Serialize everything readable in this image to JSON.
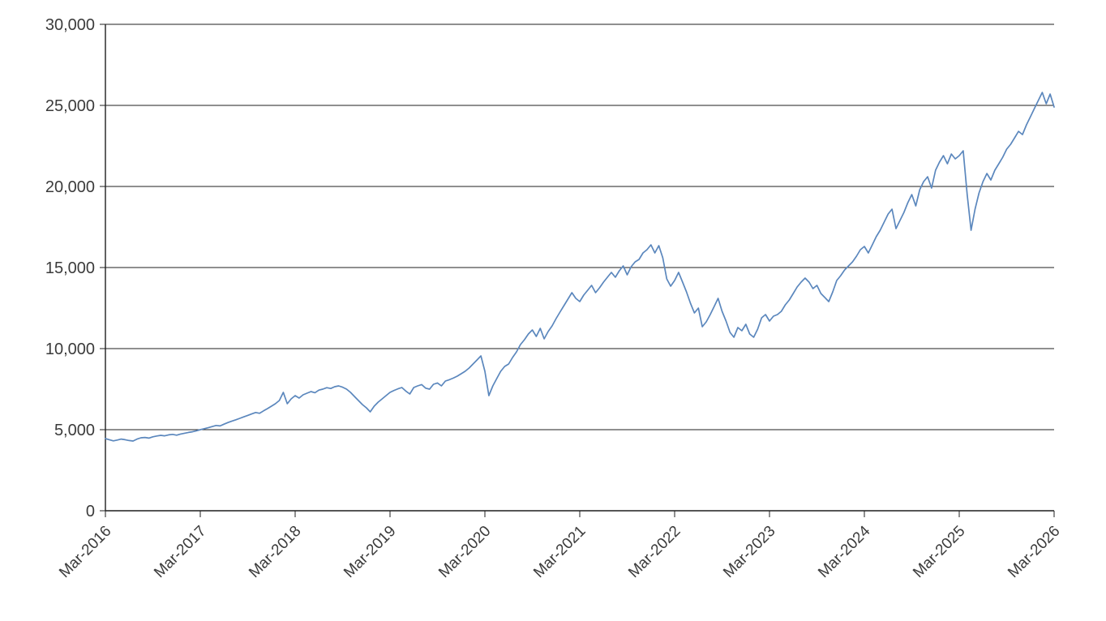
{
  "chart_data": {
    "type": "line",
    "title": "",
    "xlabel": "",
    "ylabel": "",
    "legend": "none",
    "grid": "horizontal",
    "ylim": [
      0,
      30000
    ],
    "y_tick_values": [
      0,
      5000,
      10000,
      15000,
      20000,
      25000,
      30000
    ],
    "y_tick_labels": [
      "0",
      "5,000",
      "10,000",
      "15,000",
      "20,000",
      "25,000",
      "30,000"
    ],
    "x_tick_labels": [
      "Mar-2016",
      "Mar-2017",
      "Mar-2018",
      "Mar-2019",
      "Mar-2020",
      "Mar-2021",
      "Mar-2022",
      "Mar-2023",
      "Mar-2024",
      "Mar-2025",
      "Mar-2026"
    ],
    "sampling": "semi-monthly points from Mar-2016 to Mar-2026, evenly spaced",
    "line_color": "#5b87bd",
    "axis_color": "#1f1f1f",
    "label_color": "#3b3b3b",
    "values": [
      4450,
      4380,
      4310,
      4360,
      4420,
      4380,
      4330,
      4300,
      4420,
      4500,
      4520,
      4480,
      4560,
      4610,
      4650,
      4620,
      4680,
      4710,
      4660,
      4730,
      4780,
      4830,
      4870,
      4930,
      5000,
      5060,
      5120,
      5190,
      5260,
      5230,
      5340,
      5440,
      5530,
      5610,
      5700,
      5790,
      5880,
      5970,
      6060,
      6010,
      6160,
      6300,
      6450,
      6600,
      6800,
      7300,
      6600,
      6900,
      7100,
      6950,
      7150,
      7250,
      7350,
      7280,
      7440,
      7500,
      7590,
      7540,
      7650,
      7700,
      7620,
      7500,
      7300,
      7050,
      6800,
      6550,
      6350,
      6100,
      6450,
      6700,
      6900,
      7100,
      7300,
      7420,
      7520,
      7600,
      7380,
      7200,
      7600,
      7700,
      7780,
      7560,
      7500,
      7800,
      7880,
      7700,
      8000,
      8080,
      8180,
      8300,
      8450,
      8600,
      8800,
      9050,
      9300,
      9550,
      8600,
      7100,
      7700,
      8150,
      8600,
      8900,
      9050,
      9450,
      9800,
      10250,
      10550,
      10900,
      11150,
      10750,
      11250,
      10600,
      11050,
      11400,
      11850,
      12250,
      12650,
      13050,
      13450,
      13100,
      12900,
      13300,
      13600,
      13900,
      13450,
      13750,
      14100,
      14400,
      14700,
      14400,
      14800,
      15100,
      14550,
      15050,
      15350,
      15500,
      15900,
      16100,
      16400,
      15900,
      16350,
      15600,
      14300,
      13850,
      14200,
      14700,
      14100,
      13500,
      12800,
      12200,
      12500,
      11350,
      11650,
      12100,
      12600,
      13100,
      12300,
      11700,
      11000,
      10700,
      11300,
      11100,
      11500,
      10900,
      10700,
      11200,
      11900,
      12100,
      11700,
      12000,
      12100,
      12300,
      12700,
      13000,
      13400,
      13800,
      14100,
      14350,
      14100,
      13700,
      13900,
      13400,
      13150,
      12900,
      13500,
      14200,
      14500,
      14850,
      15100,
      15350,
      15700,
      16100,
      16300,
      15900,
      16400,
      16900,
      17300,
      17800,
      18300,
      18600,
      17400,
      17900,
      18400,
      19000,
      19500,
      18800,
      19800,
      20300,
      20600,
      19900,
      21000,
      21500,
      21900,
      21400,
      22000,
      21700,
      21900,
      22200,
      19500,
      17300,
      18600,
      19600,
      20300,
      20800,
      20400,
      21000,
      21400,
      21800,
      22300,
      22600,
      23000,
      23400,
      23200,
      23800,
      24300,
      24800,
      25300,
      25800,
      25100,
      25700,
      24900
    ]
  }
}
